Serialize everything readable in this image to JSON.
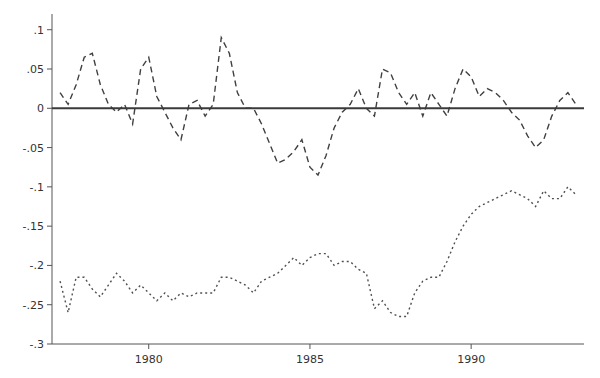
{
  "chart_data": {
    "type": "line",
    "x": [
      1977.25,
      1977.5,
      1977.75,
      1978.0,
      1978.25,
      1978.5,
      1978.75,
      1979.0,
      1979.25,
      1979.5,
      1979.75,
      1980.0,
      1980.25,
      1980.5,
      1980.75,
      1981.0,
      1981.25,
      1981.5,
      1981.75,
      1982.0,
      1982.25,
      1982.5,
      1982.75,
      1983.0,
      1983.25,
      1983.5,
      1983.75,
      1984.0,
      1984.25,
      1984.5,
      1984.75,
      1985.0,
      1985.25,
      1985.5,
      1985.75,
      1986.0,
      1986.25,
      1986.5,
      1986.75,
      1987.0,
      1987.25,
      1987.5,
      1987.75,
      1988.0,
      1988.25,
      1988.5,
      1988.75,
      1989.0,
      1989.25,
      1989.5,
      1989.75,
      1990.0,
      1990.25,
      1990.5,
      1990.75,
      1991.0,
      1991.25,
      1991.5,
      1991.75,
      1992.0,
      1992.25,
      1992.5,
      1992.75,
      1993.0,
      1993.25
    ],
    "series": [
      {
        "color": "#404040",
        "line_style": "dashed",
        "values": [
          0.02,
          0.005,
          0.03,
          0.065,
          0.07,
          0.03,
          0.005,
          -0.005,
          0.005,
          -0.02,
          0.05,
          0.065,
          0.015,
          -0.005,
          -0.025,
          -0.04,
          0.005,
          0.01,
          -0.01,
          0.005,
          0.09,
          0.07,
          0.02,
          0.0,
          0.0,
          -0.02,
          -0.045,
          -0.07,
          -0.065,
          -0.055,
          -0.04,
          -0.075,
          -0.085,
          -0.06,
          -0.025,
          -0.005,
          0.005,
          0.025,
          0.0,
          -0.01,
          0.05,
          0.045,
          0.02,
          0.005,
          0.02,
          -0.01,
          0.02,
          0.005,
          -0.01,
          0.025,
          0.05,
          0.04,
          0.015,
          0.025,
          0.02,
          0.01,
          -0.005,
          -0.015,
          -0.035,
          -0.05,
          -0.04,
          -0.01,
          0.01,
          0.02,
          0.005
        ]
      },
      {
        "color": "#505050",
        "line_style": "dotted",
        "values": [
          -0.22,
          -0.26,
          -0.215,
          -0.215,
          -0.23,
          -0.24,
          -0.225,
          -0.21,
          -0.22,
          -0.235,
          -0.225,
          -0.235,
          -0.245,
          -0.235,
          -0.245,
          -0.235,
          -0.24,
          -0.235,
          -0.235,
          -0.235,
          -0.215,
          -0.215,
          -0.22,
          -0.225,
          -0.235,
          -0.22,
          -0.215,
          -0.21,
          -0.2,
          -0.19,
          -0.2,
          -0.19,
          -0.185,
          -0.185,
          -0.2,
          -0.195,
          -0.195,
          -0.205,
          -0.21,
          -0.255,
          -0.245,
          -0.26,
          -0.265,
          -0.265,
          -0.235,
          -0.22,
          -0.215,
          -0.215,
          -0.195,
          -0.17,
          -0.15,
          -0.135,
          -0.125,
          -0.12,
          -0.115,
          -0.11,
          -0.105,
          -0.11,
          -0.115,
          -0.125,
          -0.105,
          -0.115,
          -0.115,
          -0.1,
          -0.11
        ]
      }
    ],
    "reference_line": {
      "value": 0,
      "color": "#3a3a3a"
    },
    "xlim": [
      1977.0,
      1993.5
    ],
    "xticks": [
      1980,
      1985,
      1990
    ],
    "ylim": [
      -0.3,
      0.12
    ],
    "yticks": [
      {
        "value": -0.3,
        "label": "-.3"
      },
      {
        "value": -0.25,
        "label": "-.25"
      },
      {
        "value": -0.2,
        "label": "-.2"
      },
      {
        "value": -0.15,
        "label": "-.15"
      },
      {
        "value": -0.1,
        "label": "-.1"
      },
      {
        "value": -0.05,
        "label": "-.05"
      },
      0,
      {
        "value": 0.05,
        "label": ".05"
      },
      {
        "value": 0.1,
        "label": ".1"
      }
    ],
    "grid": false
  }
}
